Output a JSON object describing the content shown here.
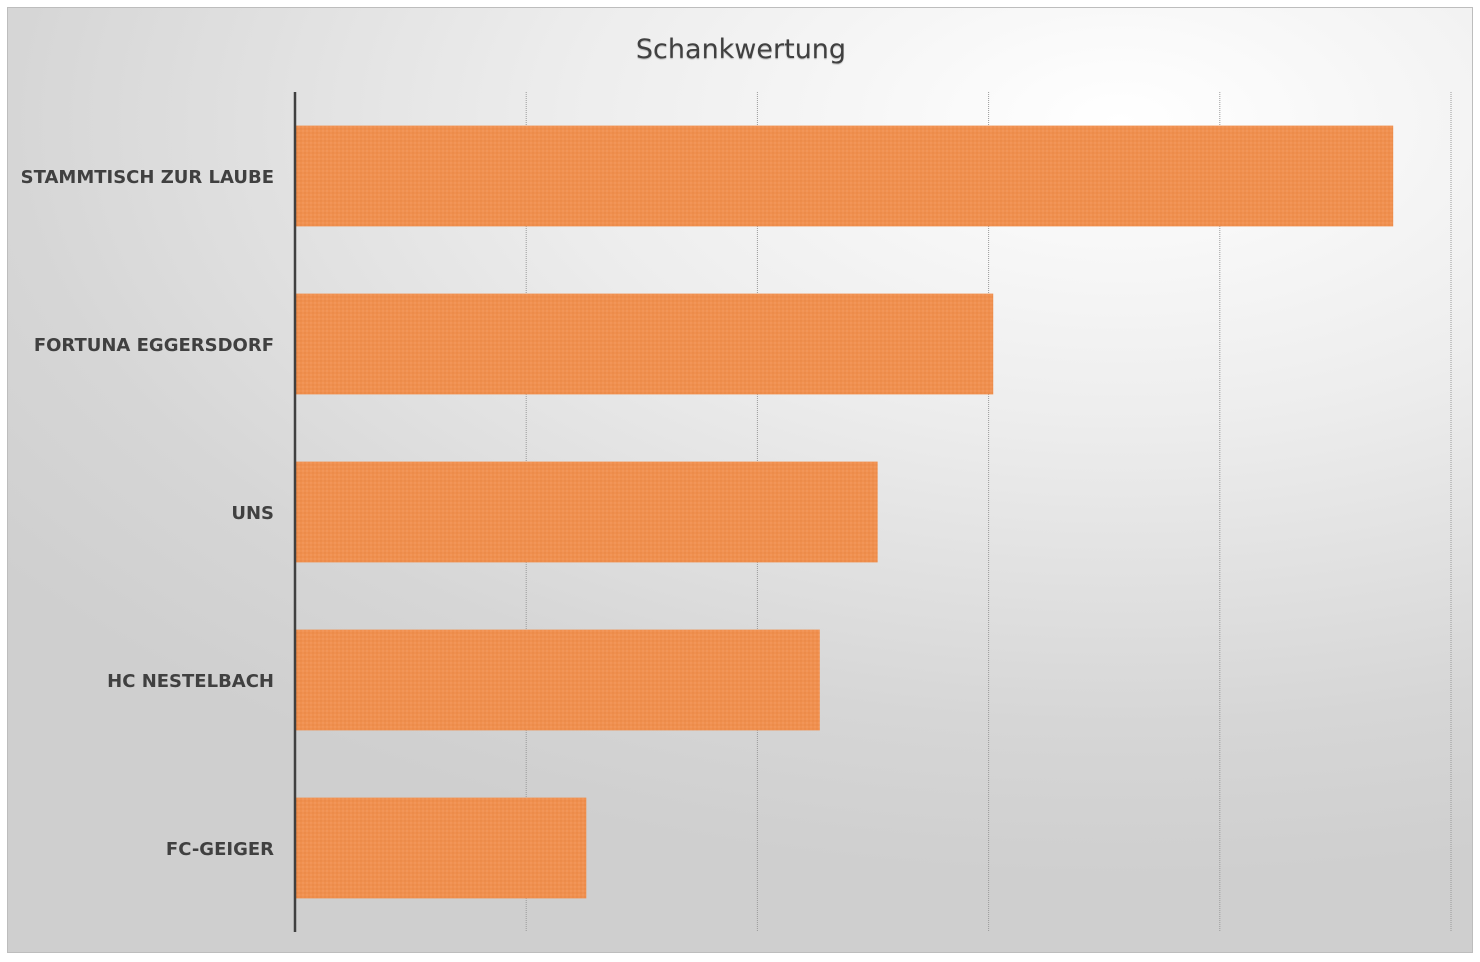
{
  "chart_data": {
    "type": "bar",
    "orientation": "horizontal",
    "title": "Schankwertung",
    "categories": [
      "STAMMTISCH ZUR LAUBE",
      "FORTUNA EGGERSDORF",
      "UNS",
      "HC NESTELBACH",
      "FC-GEIGER"
    ],
    "values": [
      4.75,
      3.02,
      2.52,
      2.27,
      1.26
    ],
    "xlim": [
      0,
      5
    ],
    "x_gridlines": [
      1,
      2,
      3,
      4,
      5
    ],
    "x_tick_labels_visible": false,
    "grid": true,
    "legend": "none",
    "bar_color": "#f0904f",
    "axis_color": "#404040",
    "grid_color": "#9a9a9a"
  }
}
